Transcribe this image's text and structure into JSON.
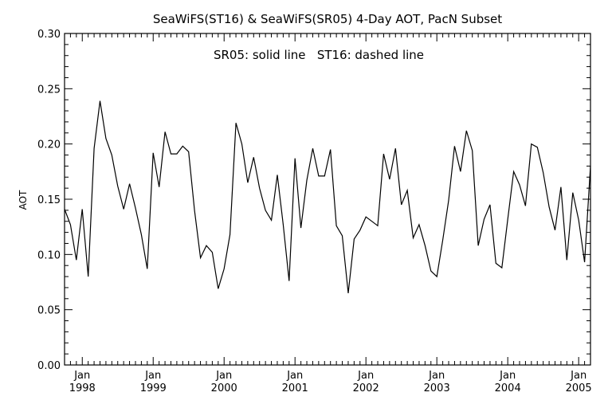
{
  "chart_data": {
    "type": "line",
    "title": "SeaWiFS(ST16) & SeaWiFS(SR05) 4-Day AOT, PacN Subset",
    "annotation": "SR05: solid line   ST16: dashed line",
    "xlabel": "",
    "ylabel": "AOT",
    "xlim": [
      "1997-10",
      "2005-03"
    ],
    "ylim": [
      0.0,
      0.3
    ],
    "yticks": [
      "0.00",
      "0.05",
      "0.10",
      "0.15",
      "0.20",
      "0.25",
      "0.30"
    ],
    "xticks": [
      {
        "month": "Jan",
        "year": "1998",
        "date": "1998-01"
      },
      {
        "month": "Jan",
        "year": "1999",
        "date": "1999-01"
      },
      {
        "month": "Jan",
        "year": "2000",
        "date": "2000-01"
      },
      {
        "month": "Jan",
        "year": "2001",
        "date": "2001-01"
      },
      {
        "month": "Jan",
        "year": "2002",
        "date": "2002-01"
      },
      {
        "month": "Jan",
        "year": "2003",
        "date": "2003-01"
      },
      {
        "month": "Jan",
        "year": "2004",
        "date": "2004-01"
      },
      {
        "month": "Jan",
        "year": "2005",
        "date": "2005-01"
      }
    ],
    "grid": false,
    "series": [
      {
        "style": "solid",
        "x": [
          "1997-10",
          "1997-11",
          "1997-12",
          "1998-01",
          "1998-02",
          "1998-03",
          "1998-04",
          "1998-05",
          "1998-06",
          "1998-07",
          "1998-08",
          "1998-09",
          "1998-10",
          "1998-11",
          "1998-12",
          "1999-01",
          "1999-02",
          "1999-03",
          "1999-04",
          "1999-05",
          "1999-06",
          "1999-07",
          "1999-08",
          "1999-09",
          "1999-10",
          "1999-11",
          "1999-12",
          "2000-01",
          "2000-02",
          "2000-03",
          "2000-04",
          "2000-05",
          "2000-06",
          "2000-07",
          "2000-08",
          "2000-09",
          "2000-10",
          "2000-11",
          "2000-12",
          "2001-01",
          "2001-02",
          "2001-03",
          "2001-04",
          "2001-05",
          "2001-06",
          "2001-07",
          "2001-08",
          "2001-09",
          "2001-10",
          "2001-11",
          "2001-12",
          "2002-01",
          "2002-02",
          "2002-03",
          "2002-04",
          "2002-05",
          "2002-06",
          "2002-07",
          "2002-08",
          "2002-09",
          "2002-10",
          "2002-11",
          "2002-12",
          "2003-01",
          "2003-02",
          "2003-03",
          "2003-04",
          "2003-05",
          "2003-06",
          "2003-07",
          "2003-08",
          "2003-09",
          "2003-10",
          "2003-11",
          "2003-12",
          "2004-01",
          "2004-02",
          "2004-03",
          "2004-04",
          "2004-05",
          "2004-06",
          "2004-07",
          "2004-08",
          "2004-09",
          "2004-10",
          "2004-11",
          "2004-12",
          "2005-01",
          "2005-02",
          "2005-03"
        ],
        "y": [
          0.141,
          0.127,
          0.095,
          0.141,
          0.08,
          0.196,
          0.239,
          0.205,
          0.19,
          0.162,
          0.141,
          0.164,
          0.142,
          0.118,
          0.087,
          0.192,
          0.161,
          0.211,
          0.191,
          0.191,
          0.198,
          0.193,
          0.14,
          0.097,
          0.108,
          0.102,
          0.069,
          0.087,
          0.118,
          0.219,
          0.2,
          0.165,
          0.188,
          0.16,
          0.14,
          0.131,
          0.172,
          0.127,
          0.076,
          0.187,
          0.124,
          0.167,
          0.196,
          0.171,
          0.171,
          0.195,
          0.126,
          0.117,
          0.065,
          0.114,
          0.122,
          0.134,
          0.13,
          0.126,
          0.191,
          0.168,
          0.196,
          0.145,
          0.158,
          0.115,
          0.127,
          0.108,
          0.085,
          0.08,
          0.113,
          0.149,
          0.198,
          0.175,
          0.212,
          0.194,
          0.108,
          0.132,
          0.145,
          0.092,
          0.088,
          0.132,
          0.175,
          0.163,
          0.144,
          0.2,
          0.197,
          0.174,
          0.143,
          0.122,
          0.161,
          0.095,
          0.156,
          0.131,
          0.093,
          0.18
        ]
      }
    ]
  }
}
